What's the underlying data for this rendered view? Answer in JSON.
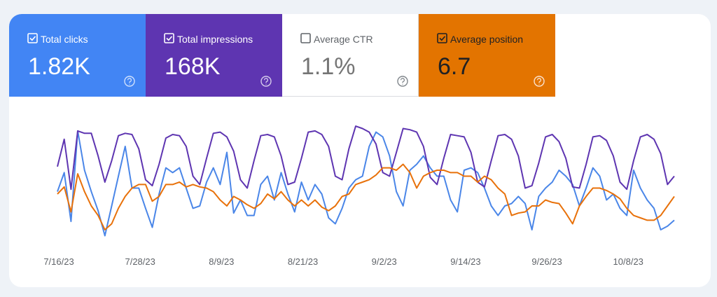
{
  "metrics": [
    {
      "name": "Total clicks",
      "total": "1.82K",
      "selected": true,
      "color": "#4285f4"
    },
    {
      "name": "Total impressions",
      "total": "168K",
      "selected": true,
      "color": "#5e35b1"
    },
    {
      "name": "Average CTR",
      "total": "1.1%",
      "selected": false,
      "color": "#ffffff"
    },
    {
      "name": "Average position",
      "total": "6.7",
      "selected": true,
      "color": "#e37400"
    }
  ],
  "chart_data": {
    "type": "line",
    "categories": [
      "7/16/23",
      null,
      null,
      null,
      null,
      null,
      null,
      null,
      null,
      null,
      null,
      null,
      "7/28/23",
      null,
      null,
      null,
      null,
      null,
      null,
      null,
      null,
      null,
      null,
      null,
      "8/9/23",
      null,
      null,
      null,
      null,
      null,
      null,
      null,
      null,
      null,
      null,
      null,
      "8/21/23",
      null,
      null,
      null,
      null,
      null,
      null,
      null,
      null,
      null,
      null,
      null,
      "9/2/23",
      null,
      null,
      null,
      null,
      null,
      null,
      null,
      null,
      null,
      null,
      null,
      "9/14/23",
      null,
      null,
      null,
      null,
      null,
      null,
      null,
      null,
      null,
      null,
      null,
      "9/26/23",
      null,
      null,
      null,
      null,
      null,
      null,
      null,
      null,
      null,
      null,
      null,
      "10/8/23",
      null,
      null,
      null,
      null,
      null,
      null,
      null
    ],
    "ylim": [
      0,
      100
    ],
    "series": [
      {
        "color": "#4a86e8",
        "values": [
          42,
          58,
          17,
          93,
          60,
          42,
          26,
          5,
          30,
          55,
          80,
          45,
          45,
          28,
          12,
          40,
          62,
          58,
          62,
          45,
          28,
          30,
          50,
          62,
          48,
          75,
          24,
          35,
          22,
          22,
          48,
          55,
          35,
          58,
          40,
          25,
          50,
          35,
          48,
          40,
          20,
          15,
          28,
          45,
          52,
          55,
          80,
          92,
          88,
          72,
          42,
          30,
          60,
          65,
          72,
          62,
          55,
          55,
          35,
          25,
          60,
          62,
          58,
          45,
          30,
          22,
          30,
          32,
          38,
          32,
          10,
          38,
          45,
          50,
          60,
          55,
          48,
          30,
          45,
          62,
          55,
          35,
          40,
          28,
          22,
          60,
          45,
          35,
          28,
          10,
          13,
          18
        ]
      },
      {
        "color": "#5e35b1",
        "values": [
          63,
          86,
          44,
          93,
          91,
          91,
          72,
          50,
          68,
          89,
          91,
          90,
          78,
          52,
          47,
          65,
          87,
          90,
          89,
          80,
          55,
          48,
          70,
          91,
          92,
          88,
          76,
          52,
          45,
          68,
          89,
          90,
          88,
          72,
          48,
          50,
          70,
          92,
          93,
          90,
          80,
          55,
          52,
          78,
          97,
          95,
          92,
          82,
          58,
          55,
          75,
          95,
          94,
          92,
          80,
          54,
          48,
          70,
          90,
          89,
          88,
          75,
          50,
          46,
          68,
          89,
          90,
          86,
          72,
          45,
          47,
          66,
          88,
          90,
          84,
          70,
          46,
          45,
          65,
          88,
          89,
          85,
          72,
          50,
          44,
          68,
          88,
          90,
          86,
          74,
          48,
          55
        ]
      },
      {
        "color": "#e8710a",
        "values": [
          40,
          46,
          25,
          57,
          42,
          30,
          22,
          10,
          15,
          28,
          38,
          45,
          48,
          48,
          34,
          38,
          48,
          48,
          50,
          46,
          48,
          46,
          45,
          42,
          35,
          30,
          38,
          35,
          31,
          28,
          32,
          40,
          36,
          42,
          35,
          30,
          35,
          30,
          35,
          29,
          26,
          30,
          38,
          40,
          48,
          50,
          52,
          56,
          62,
          62,
          60,
          65,
          58,
          45,
          55,
          58,
          60,
          60,
          58,
          58,
          55,
          55,
          50,
          55,
          52,
          45,
          40,
          22,
          24,
          25,
          30,
          30,
          35,
          33,
          32,
          24,
          15,
          30,
          38,
          45,
          45,
          43,
          40,
          36,
          28,
          22,
          20,
          18,
          18,
          22,
          30,
          38
        ]
      }
    ]
  }
}
